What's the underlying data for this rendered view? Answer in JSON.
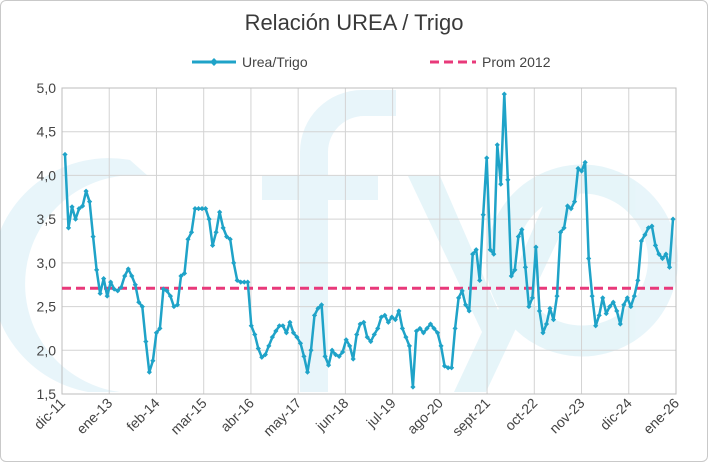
{
  "chart_data": {
    "type": "line",
    "title": "Relación UREA / Trigo",
    "xlabel": "",
    "ylabel": "",
    "ylim": [
      1.5,
      5.0
    ],
    "yticks": [
      "1,5",
      "2,0",
      "2,5",
      "3,0",
      "3,5",
      "4,0",
      "4,5",
      "5,0"
    ],
    "xticks": [
      "dic-11",
      "ene-13",
      "feb-14",
      "mar-15",
      "abr-16",
      "may-17",
      "jun-18",
      "jul-19",
      "ago-20",
      "sept-21",
      "oct-22",
      "nov-23",
      "dic-24",
      "ene-26"
    ],
    "grid": true,
    "legend_position": "top",
    "series": [
      {
        "name": "Urea/Trigo",
        "color": "#1fa3c8",
        "values": [
          4.24,
          3.4,
          3.64,
          3.5,
          3.62,
          3.65,
          3.82,
          3.7,
          3.3,
          2.92,
          2.65,
          2.82,
          2.62,
          2.78,
          2.7,
          2.68,
          2.72,
          2.85,
          2.93,
          2.85,
          2.75,
          2.55,
          2.5,
          2.1,
          1.75,
          1.88,
          2.2,
          2.25,
          2.7,
          2.68,
          2.62,
          2.5,
          2.52,
          2.85,
          2.88,
          3.27,
          3.35,
          3.62,
          3.62,
          3.62,
          3.62,
          3.5,
          3.2,
          3.35,
          3.58,
          3.4,
          3.3,
          3.27,
          3.0,
          2.8,
          2.78,
          2.78,
          2.78,
          2.28,
          2.18,
          2.02,
          1.92,
          1.95,
          2.05,
          2.15,
          2.22,
          2.28,
          2.28,
          2.2,
          2.32,
          2.2,
          2.15,
          2.08,
          1.93,
          1.75,
          2.0,
          2.4,
          2.48,
          2.52,
          1.93,
          1.83,
          2.0,
          1.95,
          1.93,
          1.98,
          2.12,
          2.05,
          1.9,
          2.18,
          2.3,
          2.32,
          2.15,
          2.1,
          2.18,
          2.25,
          2.38,
          2.4,
          2.32,
          2.38,
          2.35,
          2.45,
          2.25,
          2.15,
          2.05,
          1.58,
          2.22,
          2.25,
          2.2,
          2.25,
          2.3,
          2.25,
          2.2,
          2.05,
          1.82,
          1.8,
          1.8,
          2.25,
          2.6,
          2.68,
          2.52,
          2.45,
          3.1,
          3.15,
          2.8,
          3.55,
          4.2,
          3.15,
          3.1,
          4.35,
          3.9,
          4.93,
          3.95,
          2.85,
          2.92,
          3.3,
          3.38,
          2.95,
          2.5,
          2.6,
          3.18,
          2.45,
          2.2,
          2.3,
          2.48,
          2.35,
          2.62,
          3.35,
          3.4,
          3.65,
          3.62,
          3.7,
          4.08,
          4.05,
          4.15,
          3.05,
          2.62,
          2.28,
          2.4,
          2.6,
          2.42,
          2.5,
          2.55,
          2.45,
          2.3,
          2.52,
          2.6,
          2.5,
          2.62,
          2.8,
          3.25,
          3.32,
          3.4,
          3.42,
          3.2,
          3.1,
          3.05,
          3.1,
          2.95,
          3.5
        ]
      },
      {
        "name": "Prom 2012",
        "color": "#e8397a",
        "constant": 2.71
      }
    ]
  }
}
